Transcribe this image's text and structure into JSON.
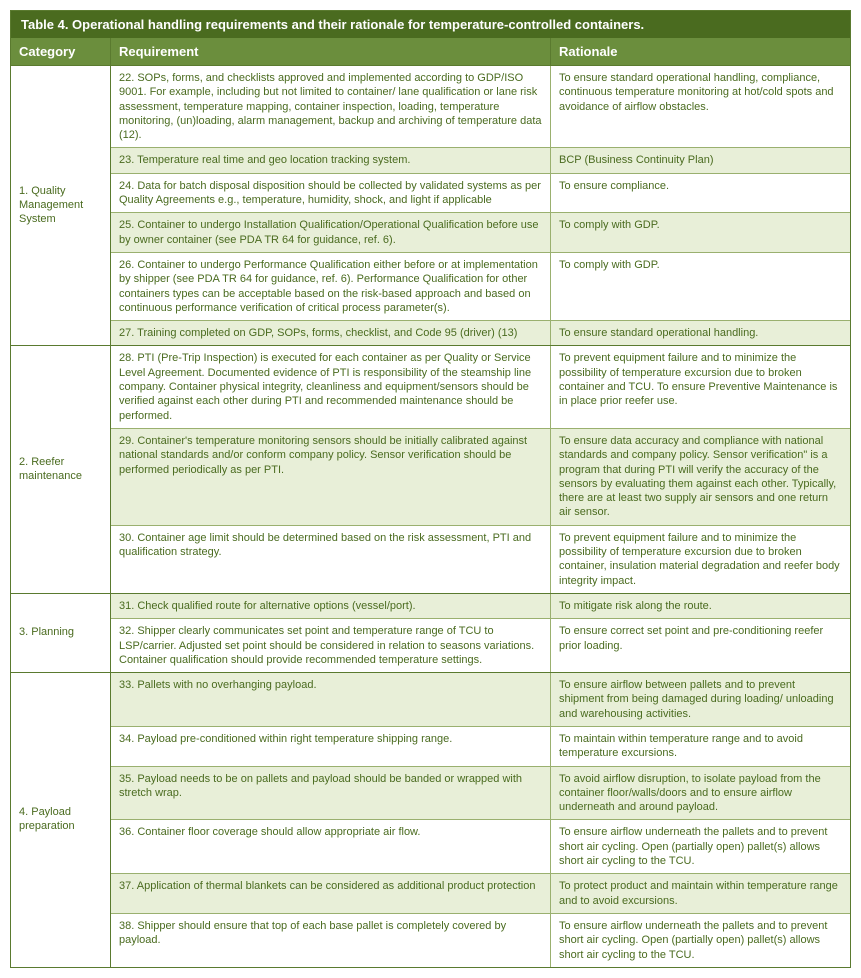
{
  "title": "Table 4. Operational handling requirements and their rationale for temperature-controlled containers.",
  "headers": {
    "category": "Category",
    "requirement": "Requirement",
    "rationale": "Rationale"
  },
  "sections": [
    {
      "category": "1. Quality Management System",
      "rows": [
        {
          "alt": false,
          "req": "22. SOPs, forms, and checklists approved and implemented according to GDP/ISO 9001. For example, including but not limited to container/ lane qualification or lane risk assessment, temperature mapping, container inspection, loading, temperature monitoring, (un)loading, alarm management, backup and archiving of temperature data (12).",
          "rat": "To ensure standard operational handling, compliance, continuous temperature monitoring at hot/cold spots and avoidance of airflow obstacles."
        },
        {
          "alt": true,
          "req": "23. Temperature real time and geo location tracking system.",
          "rat": "BCP (Business Continuity Plan)"
        },
        {
          "alt": false,
          "req": "24. Data for batch disposal disposition should be collected by validated systems as per Quality Agreements e.g., temperature, humidity, shock, and light if applicable",
          "rat": "To ensure compliance."
        },
        {
          "alt": true,
          "req": "25. Container to undergo Installation Qualification/Operational Qualification before use by owner container (see PDA TR 64 for guidance, ref. 6).",
          "rat": "To comply with GDP."
        },
        {
          "alt": false,
          "req": "26. Container to undergo Performance Qualification either before or at implementation by shipper (see PDA TR 64 for guidance, ref. 6). Performance Qualification for other containers types can be acceptable based on the risk-based approach and based on continuous performance verification of critical process parameter(s).",
          "rat": "To comply with GDP."
        },
        {
          "alt": true,
          "req": "27. Training completed on GDP, SOPs, forms, checklist, and Code 95 (driver) (13)",
          "rat": "To ensure standard operational handling."
        }
      ]
    },
    {
      "category": "2. Reefer maintenance",
      "rows": [
        {
          "alt": false,
          "req": "28. PTI (Pre-Trip Inspection) is executed for each container as per Quality or Service Level Agreement. Documented evidence of PTI is responsibility of the steamship line company. Container physical integrity, cleanliness and equipment/sensors should be verified against each other during PTI and recommended maintenance should be performed.",
          "rat": "To prevent equipment failure and to minimize the possibility of temperature excursion due to broken container and TCU. To ensure Preventive Maintenance is in place prior reefer use."
        },
        {
          "alt": true,
          "req": "29. Container's temperature monitoring sensors should be initially calibrated against national standards and/or conform company policy. Sensor verification should be performed periodically as per PTI.",
          "rat": "To ensure data accuracy and compliance with national standards and company policy. Sensor verification\" is a program that during PTI will verify the accuracy of the sensors by evaluating them against each other. Typically, there are at least two supply air sensors and one return air sensor."
        },
        {
          "alt": false,
          "req": "30. Container age limit should be determined based on the risk assessment, PTI and qualification strategy.",
          "rat": "To prevent equipment failure and to minimize the possibility of temperature excursion due to broken container, insulation material degradation and reefer body integrity impact."
        }
      ]
    },
    {
      "category": "3. Planning",
      "rows": [
        {
          "alt": true,
          "req": "31. Check qualified route for alternative options (vessel/port).",
          "rat": "To mitigate risk along the route."
        },
        {
          "alt": false,
          "req": "32. Shipper clearly communicates set point and temperature range of TCU to LSP/carrier. Adjusted set point should be considered in relation to seasons variations. Container qualification should provide recommended temperature settings.",
          "rat": "To ensure correct set point and pre-conditioning reefer prior loading."
        }
      ]
    },
    {
      "category": "4. Payload preparation",
      "rows": [
        {
          "alt": true,
          "req": "33. Pallets with no overhanging payload.",
          "rat": "To ensure airflow between pallets and to prevent shipment from being damaged during loading/ unloading and warehousing activities."
        },
        {
          "alt": false,
          "req": "34. Payload pre-conditioned within right temperature shipping range.",
          "rat": "To maintain within temperature range and to avoid temperature excursions."
        },
        {
          "alt": true,
          "req": "35. Payload needs to be on pallets and payload should be banded or wrapped with stretch wrap.",
          "rat": "To avoid airflow disruption, to isolate payload from the container floor/walls/doors and to ensure airflow underneath and around payload."
        },
        {
          "alt": false,
          "req": "36. Container floor coverage should allow appropriate air flow.",
          "rat": "To ensure airflow underneath the pallets and to prevent short air cycling. Open (partially open) pallet(s) allows short air cycling to the TCU."
        },
        {
          "alt": true,
          "req": "37. Application of thermal blankets can be considered as additional product protection",
          "rat": "To protect product and maintain within temperature range and to avoid excursions."
        },
        {
          "alt": false,
          "req": "38. Shipper should ensure that top of each base pallet is completely covered by payload.",
          "rat": "To ensure airflow underneath the pallets and to prevent short air cycling. Open (partially open) pallet(s) allows short air cycling to the TCU."
        }
      ]
    }
  ]
}
